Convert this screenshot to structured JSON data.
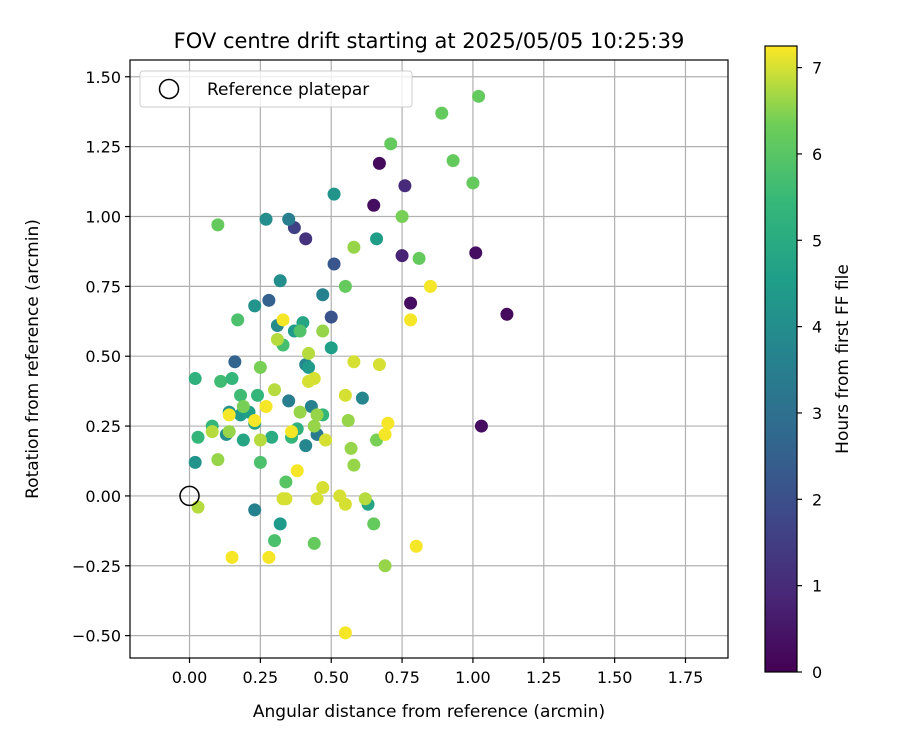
{
  "chart_data": {
    "type": "scatter",
    "title": "FOV centre drift starting at 2025/05/05 10:25:39",
    "xlabel": "Angular distance from reference (arcmin)",
    "ylabel": "Rotation from reference (arcmin)",
    "xlim": [
      -0.21,
      1.9
    ],
    "ylim": [
      -0.58,
      1.56
    ],
    "xticks": [
      "0.00",
      "0.25",
      "0.50",
      "0.75",
      "1.00",
      "1.25",
      "1.50",
      "1.75"
    ],
    "xtick_values": [
      0,
      0.25,
      0.5,
      0.75,
      1.0,
      1.25,
      1.5,
      1.75
    ],
    "yticks": [
      "−0.50",
      "−0.25",
      "0.00",
      "0.25",
      "0.50",
      "0.75",
      "1.00",
      "1.25",
      "1.50"
    ],
    "ytick_values": [
      -0.5,
      -0.25,
      0,
      0.25,
      0.5,
      0.75,
      1.0,
      1.25,
      1.5
    ],
    "grid": true,
    "legend": {
      "placement": "top-left",
      "entries": [
        {
          "label": "Reference platepar",
          "marker": "hollow-circle",
          "x": 0.0,
          "y": 0.0
        }
      ]
    },
    "colorbar": {
      "label": "Hours from first FF file",
      "colormap": "viridis",
      "range": [
        0,
        7.25
      ],
      "ticks": [
        "0",
        "1",
        "2",
        "3",
        "4",
        "5",
        "6",
        "7"
      ],
      "tick_values": [
        0,
        1,
        2,
        3,
        4,
        5,
        6,
        7
      ]
    },
    "points": [
      {
        "x": 0.67,
        "y": 1.19,
        "h": 0.2
      },
      {
        "x": 0.65,
        "y": 1.04,
        "h": 0.3
      },
      {
        "x": 0.76,
        "y": 1.11,
        "h": 1.0
      },
      {
        "x": 0.75,
        "y": 0.86,
        "h": 0.8
      },
      {
        "x": 1.01,
        "y": 0.87,
        "h": 0.3
      },
      {
        "x": 1.12,
        "y": 0.65,
        "h": 0.2
      },
      {
        "x": 1.03,
        "y": 0.25,
        "h": 0.3
      },
      {
        "x": 0.78,
        "y": 0.69,
        "h": 0.3
      },
      {
        "x": 0.41,
        "y": 0.92,
        "h": 1.2
      },
      {
        "x": 0.37,
        "y": 0.96,
        "h": 1.6
      },
      {
        "x": 0.51,
        "y": 0.83,
        "h": 2.2
      },
      {
        "x": 0.5,
        "y": 0.64,
        "h": 2.1
      },
      {
        "x": 0.28,
        "y": 0.7,
        "h": 2.5
      },
      {
        "x": 0.16,
        "y": 0.48,
        "h": 2.6
      },
      {
        "x": 0.35,
        "y": 0.99,
        "h": 3.5
      },
      {
        "x": 0.27,
        "y": 0.99,
        "h": 4.0
      },
      {
        "x": 0.51,
        "y": 1.08,
        "h": 4.2
      },
      {
        "x": 0.66,
        "y": 0.92,
        "h": 4.5
      },
      {
        "x": 0.32,
        "y": 0.77,
        "h": 4.0
      },
      {
        "x": 0.47,
        "y": 0.72,
        "h": 3.6
      },
      {
        "x": 0.23,
        "y": 0.68,
        "h": 4.2
      },
      {
        "x": 0.31,
        "y": 0.61,
        "h": 3.9
      },
      {
        "x": 0.37,
        "y": 0.59,
        "h": 4.4
      },
      {
        "x": 0.4,
        "y": 0.62,
        "h": 4.8
      },
      {
        "x": 0.41,
        "y": 0.47,
        "h": 3.8
      },
      {
        "x": 0.42,
        "y": 0.46,
        "h": 4.4
      },
      {
        "x": 0.5,
        "y": 0.53,
        "h": 4.6
      },
      {
        "x": 0.35,
        "y": 0.34,
        "h": 3.5
      },
      {
        "x": 0.43,
        "y": 0.32,
        "h": 3.6
      },
      {
        "x": 0.45,
        "y": 0.22,
        "h": 3.4
      },
      {
        "x": 0.41,
        "y": 0.18,
        "h": 3.8
      },
      {
        "x": 0.61,
        "y": 0.35,
        "h": 3.8
      },
      {
        "x": 0.23,
        "y": -0.05,
        "h": 3.6
      },
      {
        "x": 0.32,
        "y": -0.1,
        "h": 4.4
      },
      {
        "x": 0.63,
        "y": -0.03,
        "h": 4.8
      },
      {
        "x": 0.13,
        "y": 0.22,
        "h": 4.0
      },
      {
        "x": 0.02,
        "y": 0.12,
        "h": 4.2
      },
      {
        "x": 0.14,
        "y": 0.3,
        "h": 4.2
      },
      {
        "x": 0.18,
        "y": 0.29,
        "h": 4.4
      },
      {
        "x": 0.19,
        "y": 0.2,
        "h": 4.8
      },
      {
        "x": 0.21,
        "y": 0.3,
        "h": 4.6
      },
      {
        "x": 0.23,
        "y": 0.26,
        "h": 4.8
      },
      {
        "x": 0.29,
        "y": 0.21,
        "h": 5.0
      },
      {
        "x": 0.38,
        "y": 0.24,
        "h": 5.2
      },
      {
        "x": 0.36,
        "y": 0.21,
        "h": 5.4
      },
      {
        "x": 0.47,
        "y": 0.29,
        "h": 5.4
      },
      {
        "x": 0.02,
        "y": 0.42,
        "h": 5.2
      },
      {
        "x": 0.03,
        "y": 0.21,
        "h": 5.4
      },
      {
        "x": 0.08,
        "y": 0.25,
        "h": 5.4
      },
      {
        "x": 0.11,
        "y": 0.41,
        "h": 5.6
      },
      {
        "x": 0.15,
        "y": 0.42,
        "h": 5.4
      },
      {
        "x": 0.18,
        "y": 0.36,
        "h": 5.6
      },
      {
        "x": 0.24,
        "y": 0.36,
        "h": 5.4
      },
      {
        "x": 0.17,
        "y": 0.63,
        "h": 5.8
      },
      {
        "x": 0.33,
        "y": 0.54,
        "h": 5.7
      },
      {
        "x": 0.39,
        "y": 0.59,
        "h": 5.9
      },
      {
        "x": 0.25,
        "y": 0.12,
        "h": 5.8
      },
      {
        "x": 0.34,
        "y": 0.05,
        "h": 6.0
      },
      {
        "x": 0.3,
        "y": -0.16,
        "h": 5.8
      },
      {
        "x": 0.44,
        "y": -0.17,
        "h": 6.2
      },
      {
        "x": 0.65,
        "y": -0.1,
        "h": 6.2
      },
      {
        "x": 0.55,
        "y": 0.75,
        "h": 6.2
      },
      {
        "x": 0.56,
        "y": 0.27,
        "h": 6.6
      },
      {
        "x": 0.57,
        "y": 0.17,
        "h": 6.6
      },
      {
        "x": 0.58,
        "y": 0.11,
        "h": 6.6
      },
      {
        "x": 0.66,
        "y": 0.2,
        "h": 6.4
      },
      {
        "x": 0.69,
        "y": -0.25,
        "h": 6.6
      },
      {
        "x": 0.1,
        "y": 0.97,
        "h": 6.2
      },
      {
        "x": 0.71,
        "y": 1.26,
        "h": 6.2
      },
      {
        "x": 0.89,
        "y": 1.37,
        "h": 6.2
      },
      {
        "x": 1.02,
        "y": 1.43,
        "h": 6.2
      },
      {
        "x": 0.93,
        "y": 1.2,
        "h": 6.2
      },
      {
        "x": 1.0,
        "y": 1.12,
        "h": 6.2
      },
      {
        "x": 0.75,
        "y": 1.0,
        "h": 6.4
      },
      {
        "x": 0.81,
        "y": 0.85,
        "h": 6.2
      },
      {
        "x": 0.58,
        "y": 0.89,
        "h": 6.6
      },
      {
        "x": 0.47,
        "y": 0.59,
        "h": 6.6
      },
      {
        "x": 0.25,
        "y": 0.46,
        "h": 6.4
      },
      {
        "x": 0.19,
        "y": 0.32,
        "h": 6.4
      },
      {
        "x": 0.1,
        "y": 0.13,
        "h": 6.6
      },
      {
        "x": 0.25,
        "y": 0.2,
        "h": 6.8
      },
      {
        "x": 0.3,
        "y": 0.38,
        "h": 6.8
      },
      {
        "x": 0.39,
        "y": 0.3,
        "h": 6.6
      },
      {
        "x": 0.42,
        "y": 0.51,
        "h": 6.8
      },
      {
        "x": 0.45,
        "y": 0.29,
        "h": 6.6
      },
      {
        "x": 0.44,
        "y": 0.25,
        "h": 6.6
      },
      {
        "x": 0.31,
        "y": 0.56,
        "h": 6.8
      },
      {
        "x": 0.08,
        "y": 0.23,
        "h": 6.8
      },
      {
        "x": 0.14,
        "y": 0.23,
        "h": 6.6
      },
      {
        "x": 0.03,
        "y": -0.04,
        "h": 6.8
      },
      {
        "x": 0.15,
        "y": -0.22,
        "h": 7.2
      },
      {
        "x": 0.28,
        "y": -0.22,
        "h": 7.2
      },
      {
        "x": 0.33,
        "y": -0.01,
        "h": 7.0
      },
      {
        "x": 0.34,
        "y": -0.01,
        "h": 7.0
      },
      {
        "x": 0.38,
        "y": 0.09,
        "h": 7.2
      },
      {
        "x": 0.45,
        "y": -0.01,
        "h": 7.0
      },
      {
        "x": 0.47,
        "y": 0.03,
        "h": 7.0
      },
      {
        "x": 0.53,
        "y": 0.0,
        "h": 7.0
      },
      {
        "x": 0.55,
        "y": -0.03,
        "h": 7.0
      },
      {
        "x": 0.62,
        "y": -0.01,
        "h": 6.8
      },
      {
        "x": 0.55,
        "y": 0.36,
        "h": 7.0
      },
      {
        "x": 0.48,
        "y": 0.2,
        "h": 7.0
      },
      {
        "x": 0.42,
        "y": 0.41,
        "h": 7.0
      },
      {
        "x": 0.44,
        "y": 0.42,
        "h": 7.0
      },
      {
        "x": 0.58,
        "y": 0.48,
        "h": 7.0
      },
      {
        "x": 0.67,
        "y": 0.47,
        "h": 7.0
      },
      {
        "x": 0.78,
        "y": 0.63,
        "h": 7.2
      },
      {
        "x": 0.85,
        "y": 0.75,
        "h": 7.2
      },
      {
        "x": 0.7,
        "y": 0.26,
        "h": 7.2
      },
      {
        "x": 0.69,
        "y": 0.22,
        "h": 7.2
      },
      {
        "x": 0.8,
        "y": -0.18,
        "h": 7.2
      },
      {
        "x": 0.55,
        "y": -0.49,
        "h": 7.2
      },
      {
        "x": 0.33,
        "y": 0.63,
        "h": 7.2
      },
      {
        "x": 0.27,
        "y": 0.32,
        "h": 7.2
      },
      {
        "x": 0.14,
        "y": 0.29,
        "h": 7.2
      },
      {
        "x": 0.36,
        "y": 0.23,
        "h": 7.2
      },
      {
        "x": 0.23,
        "y": 0.27,
        "h": 7.2
      }
    ]
  }
}
